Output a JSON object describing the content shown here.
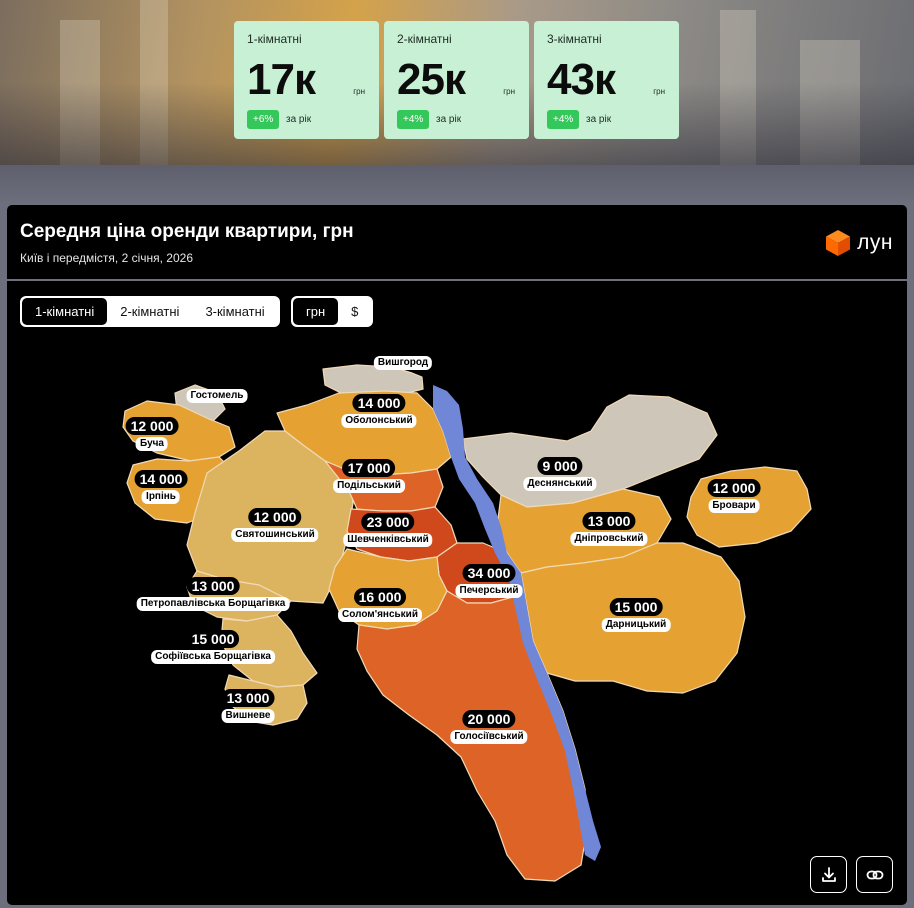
{
  "summary_cards": [
    {
      "label": "1-кімнатні",
      "price": "17к",
      "currency": "грн",
      "change": "+6%",
      "period": "за рік"
    },
    {
      "label": "2-кімнатні",
      "price": "25к",
      "currency": "грн",
      "change": "+4%",
      "period": "за рік"
    },
    {
      "label": "3-кімнатні",
      "price": "43к",
      "currency": "грн",
      "change": "+4%",
      "period": "за рік"
    }
  ],
  "widget": {
    "title": "Середня ціна оренди квартири, грн",
    "subtitle": "Київ і передмістя, 2 січня, 2026",
    "brand": "лун"
  },
  "room_tabs": [
    {
      "label": "1-кімнатні",
      "selected": true
    },
    {
      "label": "2-кімнатні",
      "selected": false
    },
    {
      "label": "3-кімнатні",
      "selected": false
    }
  ],
  "currency_tabs": [
    {
      "label": "грн",
      "selected": true
    },
    {
      "label": "$",
      "selected": false
    }
  ],
  "colors": {
    "card_bg": "#c7f0d5",
    "change_badge": "#34c759",
    "price_low": "#cfc6ba",
    "price_mid_low": "#dcb45f",
    "price_mid": "#e5a233",
    "price_high": "#de6426",
    "price_highest": "#d04a1c",
    "river": "#6f86d6"
  },
  "regions": [
    {
      "name": "Вишгород",
      "price": ""
    },
    {
      "name": "Гостомель",
      "price": ""
    },
    {
      "name": "Буча",
      "price": "12 000"
    },
    {
      "name": "Ірпінь",
      "price": "14 000"
    },
    {
      "name": "Оболонський",
      "price": "14 000"
    },
    {
      "name": "Подільський",
      "price": "17 000"
    },
    {
      "name": "Деснянський",
      "price": "9 000"
    },
    {
      "name": "Бровари",
      "price": "12 000"
    },
    {
      "name": "Святошинський",
      "price": "12 000"
    },
    {
      "name": "Шевченківський",
      "price": "23 000"
    },
    {
      "name": "Дніпровський",
      "price": "13 000"
    },
    {
      "name": "Печерський",
      "price": "34 000"
    },
    {
      "name": "Петропавлівська Борщагівка",
      "price": "13 000"
    },
    {
      "name": "Солом'янський",
      "price": "16 000"
    },
    {
      "name": "Дарницький",
      "price": "15 000"
    },
    {
      "name": "Софіївська Борщагівка",
      "price": "15 000"
    },
    {
      "name": "Вишневе",
      "price": "13 000"
    },
    {
      "name": "Голосіївський",
      "price": "20 000"
    }
  ],
  "tools": [
    {
      "name": "download",
      "icon": "download-icon"
    },
    {
      "name": "link",
      "icon": "link-icon"
    }
  ]
}
